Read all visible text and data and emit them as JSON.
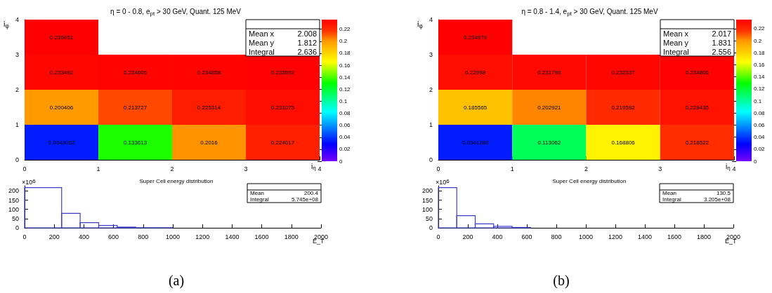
{
  "chart_data": [
    {
      "type": "heatmap",
      "title": "η = 0 - 0.8, e$_{pt}$ > 30 GeV, Quant. 125 MeV",
      "xlabel": "i$_{η}$",
      "ylabel": "i$_{φ}$",
      "xlim": [
        0,
        4
      ],
      "xticks": [
        0,
        1,
        2,
        3,
        4
      ],
      "ylim": [
        0,
        4
      ],
      "yticks": [
        0,
        1,
        2,
        3,
        4
      ],
      "cells": [
        [
          0.236951,
          null,
          null,
          null
        ],
        [
          0.233492,
          0.234606,
          0.234858,
          0.235592
        ],
        [
          0.200406,
          0.213727,
          0.225314,
          0.231075
        ],
        [
          0.0343062,
          0.133613,
          0.2016,
          0.224017
        ]
      ],
      "data_labels": true,
      "clim": [
        0,
        0.236
      ],
      "cticks": [
        0,
        0.02,
        0.04,
        0.06,
        0.08,
        0.1,
        0.12,
        0.14,
        0.16,
        0.18,
        0.2,
        0.22
      ],
      "annotations": [
        "Mean x 2.008",
        "Mean y 1.812",
        "Integral 2.636"
      ]
    },
    {
      "type": "heatmap",
      "title": "η = 0.8 - 1.4, e$_{pt}$ > 30 GeV, Quant. 125 MeV",
      "xlabel": "i$_{η}$",
      "ylabel": "i$_{φ}$",
      "xlim": [
        0,
        4
      ],
      "xticks": [
        0,
        1,
        2,
        3,
        4
      ],
      "ylim": [
        0,
        4
      ],
      "yticks": [
        0,
        1,
        2,
        3,
        4
      ],
      "cells": [
        [
          0.234979,
          null,
          null,
          null
        ],
        [
          0.22998,
          0.231799,
          0.232537,
          0.234806
        ],
        [
          0.185565,
          0.202921,
          0.219592,
          0.228435
        ],
        [
          0.0341288,
          0.113062,
          0.168806,
          0.218522
        ]
      ],
      "data_labels": true,
      "clim": [
        0,
        0.235
      ],
      "cticks": [
        0,
        0.02,
        0.04,
        0.06,
        0.08,
        0.1,
        0.12,
        0.14,
        0.16,
        0.18,
        0.2,
        0.22
      ],
      "annotations": [
        "Mean x 2.017",
        "Mean y 1.831",
        "Integral 2.556"
      ]
    },
    {
      "type": "histogram",
      "title": "Super Cell energy distribution",
      "subtitle": "(a)",
      "xlabel": "E_T",
      "ylabel": "×10$^{6}$",
      "color": "#3f3fcc",
      "bins": [
        0,
        250,
        375,
        500,
        625,
        750,
        1000
      ],
      "values": [
        218,
        78,
        28,
        13,
        4,
        1
      ],
      "xlim": [
        0,
        2000
      ],
      "xticks": [
        0,
        200,
        400,
        600,
        800,
        1000,
        1200,
        1400,
        1600,
        1800,
        2000
      ],
      "ylim": [
        0,
        228
      ],
      "yticks": [
        0,
        50,
        100,
        150,
        200
      ],
      "annotations": [
        "Mean 200.4",
        "Integral 5.745e+08"
      ]
    },
    {
      "type": "histogram",
      "title": "Super Cell energy distribution",
      "subtitle": "(b)",
      "xlabel": "E_T",
      "ylabel": "×10$^{6}$",
      "color": "#3f3fcc",
      "bins": [
        0,
        125,
        250,
        375,
        500,
        625
      ],
      "values": [
        218,
        66,
        21,
        8,
        2
      ],
      "xlim": [
        0,
        2000
      ],
      "xticks": [
        0,
        200,
        400,
        600,
        800,
        1000,
        1200,
        1400,
        1600,
        1800,
        2000
      ],
      "ylim": [
        0,
        228
      ],
      "yticks": [
        0,
        50,
        100,
        150,
        200
      ],
      "annotations": [
        "Mean 130.5",
        "Integral 3.205e+08"
      ]
    }
  ]
}
